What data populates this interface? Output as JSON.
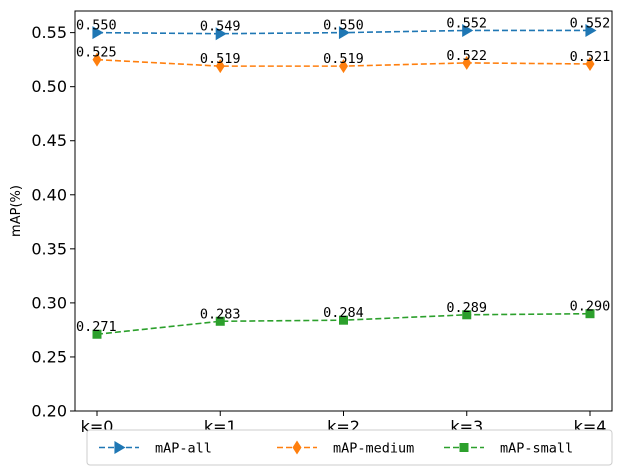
{
  "chart_data": {
    "type": "line",
    "title": "",
    "xlabel": "",
    "ylabel": "mAP(%)",
    "categories": [
      "k=0",
      "k=1",
      "k=2",
      "k=3",
      "k=4"
    ],
    "ylim": [
      0.2,
      0.57
    ],
    "yticks": [
      "0.20",
      "0.25",
      "0.30",
      "0.35",
      "0.40",
      "0.45",
      "0.50",
      "0.55"
    ],
    "grid": false,
    "legend_position": "bottom",
    "series": [
      {
        "name": "mAP-all",
        "values": [
          0.55,
          0.549,
          0.55,
          0.552,
          0.552
        ],
        "labels": [
          "0.550",
          "0.549",
          "0.550",
          "0.552",
          "0.552"
        ],
        "color": "#1f77b4",
        "marker": "triangle-right",
        "line_style": "dashed"
      },
      {
        "name": "mAP-medium",
        "values": [
          0.525,
          0.519,
          0.519,
          0.522,
          0.521
        ],
        "labels": [
          "0.525",
          "0.519",
          "0.519",
          "0.522",
          "0.521"
        ],
        "color": "#ff7f0e",
        "marker": "thin-diamond",
        "line_style": "dashed"
      },
      {
        "name": "mAP-small",
        "values": [
          0.271,
          0.283,
          0.284,
          0.289,
          0.29
        ],
        "labels": [
          "0.271",
          "0.283",
          "0.284",
          "0.289",
          "0.290"
        ],
        "color": "#2ca02c",
        "marker": "square",
        "line_style": "dashed"
      }
    ]
  }
}
